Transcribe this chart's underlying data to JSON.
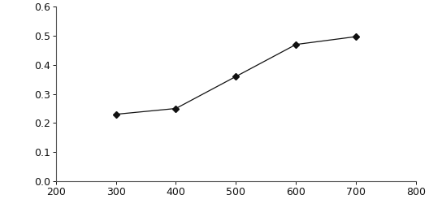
{
  "x": [
    300,
    400,
    500,
    600,
    700
  ],
  "y": [
    0.23,
    0.25,
    0.36,
    0.47,
    0.497
  ],
  "xlim": [
    200,
    800
  ],
  "ylim": [
    0,
    0.6
  ],
  "xticks": [
    200,
    300,
    400,
    500,
    600,
    700,
    800
  ],
  "yticks": [
    0,
    0.1,
    0.2,
    0.3,
    0.4,
    0.5,
    0.6
  ],
  "line_color": "#111111",
  "marker": "D",
  "marker_size": 4,
  "marker_color": "#111111",
  "line_width": 0.9,
  "background_color": "#ffffff",
  "tick_fontsize": 9,
  "spine_color": "#555555"
}
